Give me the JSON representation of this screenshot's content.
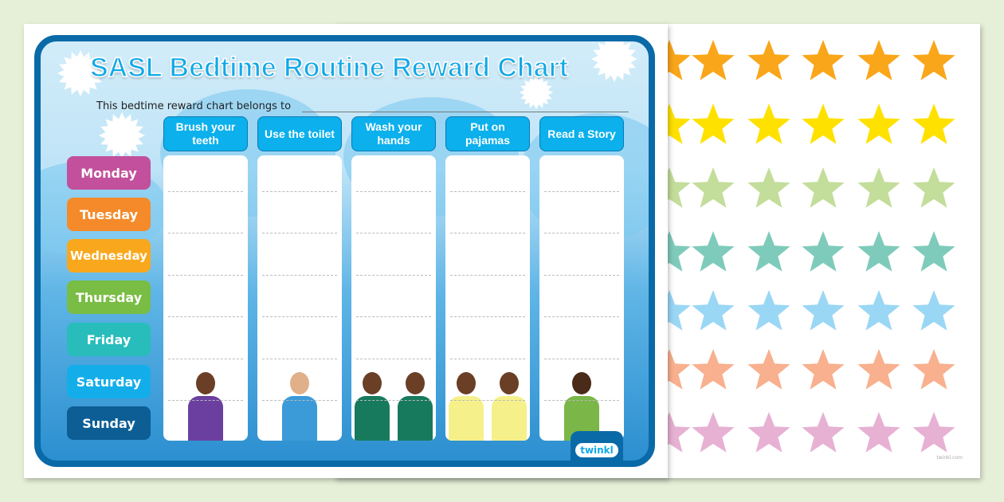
{
  "title": "SASL Bedtime Routine Reward Chart",
  "belongs_to": "This bedtime reward chart belongs to",
  "tasks": [
    "Brush your teeth",
    "Use the toilet",
    "Wash your hands",
    "Put on pajamas",
    "Read a Story"
  ],
  "days": [
    {
      "label": "Monday",
      "color": "#c2509c"
    },
    {
      "label": "Tuesday",
      "color": "#f58a2a"
    },
    {
      "label": "Wednesday",
      "color": "#f9a81d"
    },
    {
      "label": "Thursday",
      "color": "#79bd44"
    },
    {
      "label": "Friday",
      "color": "#28bdbb"
    },
    {
      "label": "Saturday",
      "color": "#13aeea"
    },
    {
      "label": "Sunday",
      "color": "#0d5e95"
    }
  ],
  "logo": "twinkl",
  "watermark": "twinkl.com",
  "star_rows": [
    "#f9a61a",
    "#ffe100",
    "#c3dd9a",
    "#7fcbbb",
    "#9ad7f5",
    "#f8b08e",
    "#e6b1d3"
  ]
}
